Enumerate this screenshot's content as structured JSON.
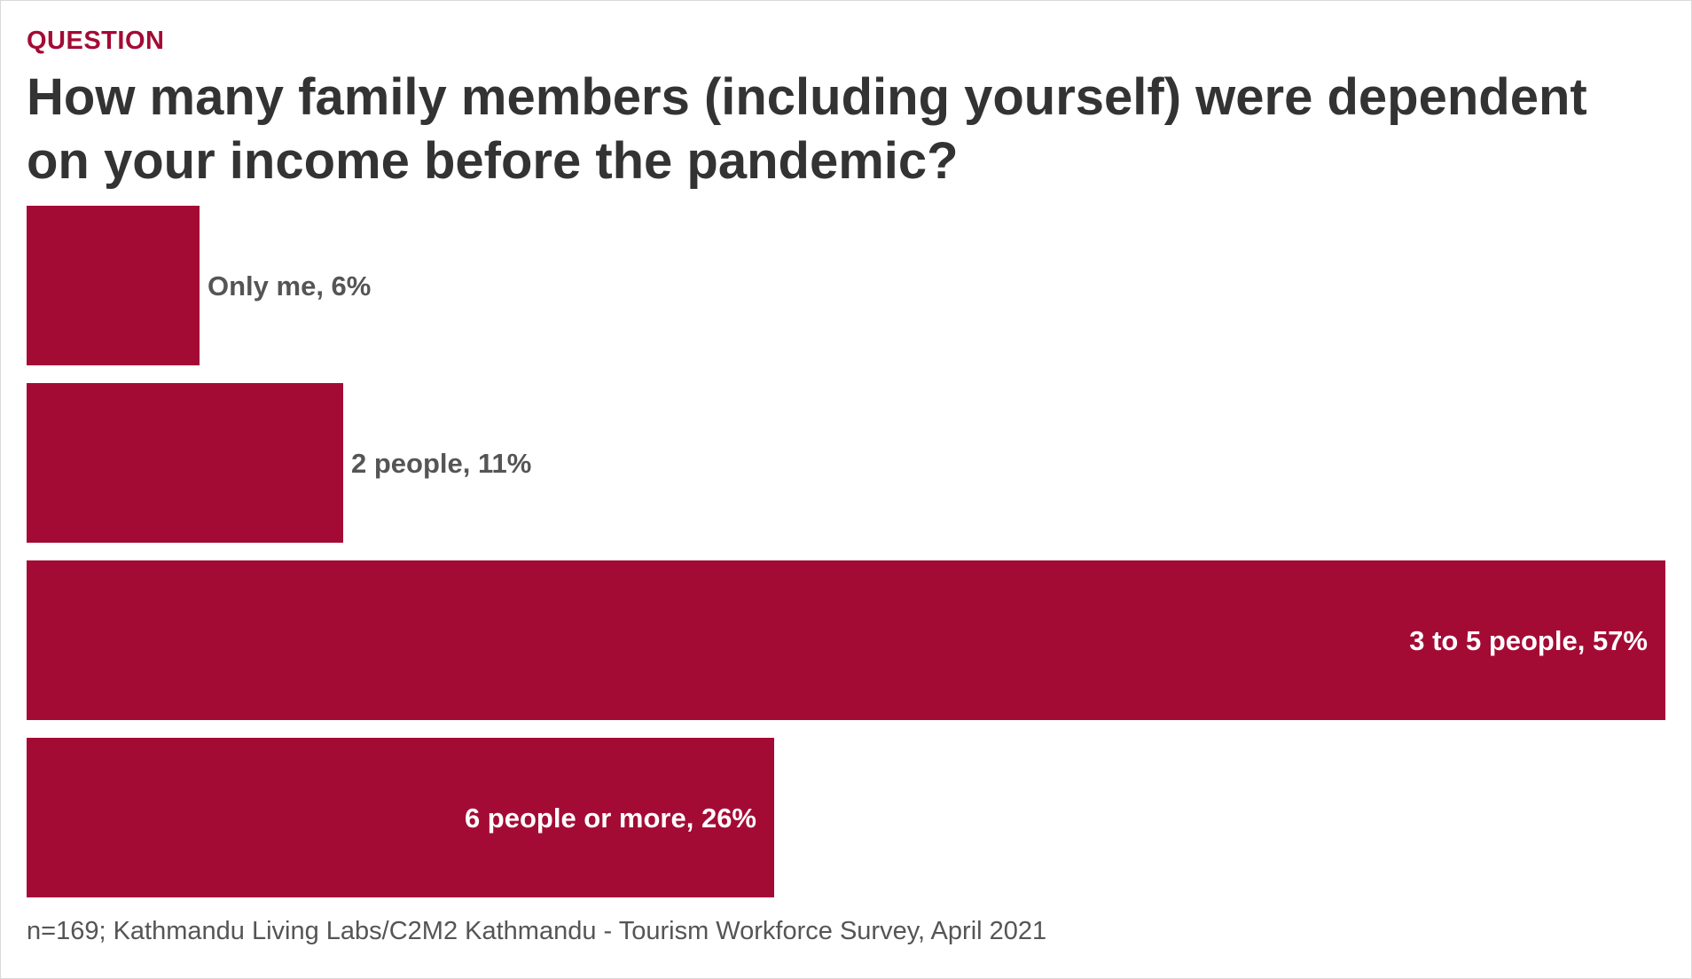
{
  "kicker": "QUESTION",
  "title": "How many family members (including yourself) were dependent on your income before the pandemic?",
  "footer": "n=169; Kathmandu Living Labs/C2M2 Kathmandu - Tourism Workforce Survey, April 2021",
  "colors": {
    "bar": "#a30b35",
    "label_outside": "#555555",
    "label_inside": "#ffffff"
  },
  "chart_data": {
    "type": "bar",
    "orientation": "horizontal",
    "categories": [
      "Only me",
      "2 people",
      "3 to 5 people",
      "6 people or more"
    ],
    "values": [
      6,
      11,
      57,
      26
    ],
    "labels": [
      "Only me, 6%",
      "2 people, 11%",
      "3 to 5 people, 57%",
      "6 people or more, 26%"
    ],
    "unit": "%",
    "xlim": [
      0,
      57
    ],
    "grid": false,
    "legend": "none"
  }
}
